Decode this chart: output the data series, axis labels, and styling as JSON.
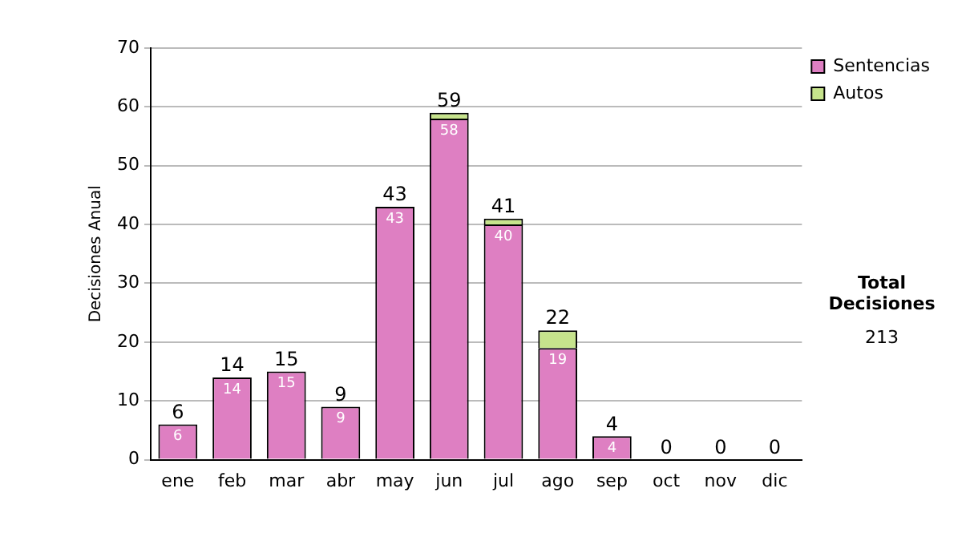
{
  "chart_data": {
    "type": "bar",
    "stacked": true,
    "ylabel": "Decisiones Anual",
    "categories": [
      "ene",
      "feb",
      "mar",
      "abr",
      "may",
      "jun",
      "jul",
      "ago",
      "sep",
      "oct",
      "nov",
      "dic"
    ],
    "series": [
      {
        "name": "Sentencias",
        "color": "#de7fc2",
        "values": [
          6,
          14,
          15,
          9,
          43,
          58,
          40,
          19,
          4,
          0,
          0,
          0
        ],
        "value_labels": [
          "6",
          "14",
          "15",
          "9",
          "43",
          "58",
          "40",
          "19",
          "4",
          null,
          null,
          null
        ]
      },
      {
        "name": "Autos",
        "color": "#c6e38c",
        "values": [
          0,
          0,
          0,
          0,
          0,
          1,
          1,
          3,
          0,
          0,
          0,
          0
        ]
      }
    ],
    "totals": [
      "6",
      "14",
      "15",
      "9",
      "43",
      "59",
      "41",
      "22",
      "4",
      "0",
      "0",
      "0"
    ],
    "ylim": [
      0,
      70
    ],
    "yticks": [
      0,
      10,
      20,
      30,
      40,
      50,
      60,
      70
    ],
    "grid": "y",
    "legend": "right",
    "annotations": [
      "Total Decisiones",
      "213"
    ]
  }
}
